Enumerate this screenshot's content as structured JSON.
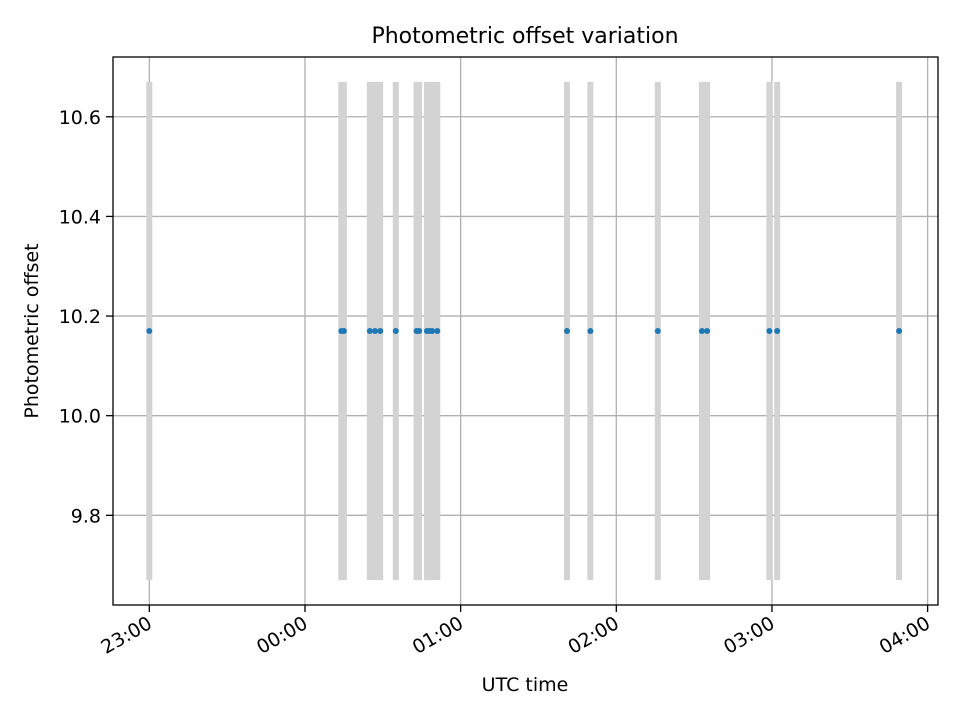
{
  "chart_data": {
    "type": "scatter",
    "title": "Photometric offset variation",
    "xlabel": "UTC time",
    "ylabel": "Photometric offset",
    "x_axis_kind": "time",
    "xlim": [
      "22:46",
      "04:04"
    ],
    "ylim": [
      9.62,
      10.72
    ],
    "x_ticks": [
      "23:00",
      "00:00",
      "01:00",
      "02:00",
      "03:00",
      "04:00"
    ],
    "y_ticks": [
      "9.8",
      "10.0",
      "10.2",
      "10.4",
      "10.6"
    ],
    "grid": true,
    "colors": {
      "points": "#1f77b4",
      "error_bars": "#d3d3d3",
      "grid": "#b0b0b0"
    },
    "series": [
      {
        "x": [
          "23:00",
          "00:14",
          "00:15",
          "00:25",
          "00:27",
          "00:29",
          "00:35",
          "00:43",
          "00:44",
          "00:47",
          "00:48",
          "00:49",
          "00:51",
          "01:41",
          "01:50",
          "02:16",
          "02:33",
          "02:35",
          "02:59",
          "03:02",
          "03:49"
        ],
        "y": [
          10.17,
          10.17,
          10.17,
          10.17,
          10.17,
          10.17,
          10.17,
          10.17,
          10.17,
          10.17,
          10.17,
          10.17,
          10.17,
          10.17,
          10.17,
          10.17,
          10.17,
          10.17,
          10.17,
          10.17,
          10.17
        ],
        "y_err_low": 9.67,
        "y_err_high": 10.67
      }
    ]
  }
}
